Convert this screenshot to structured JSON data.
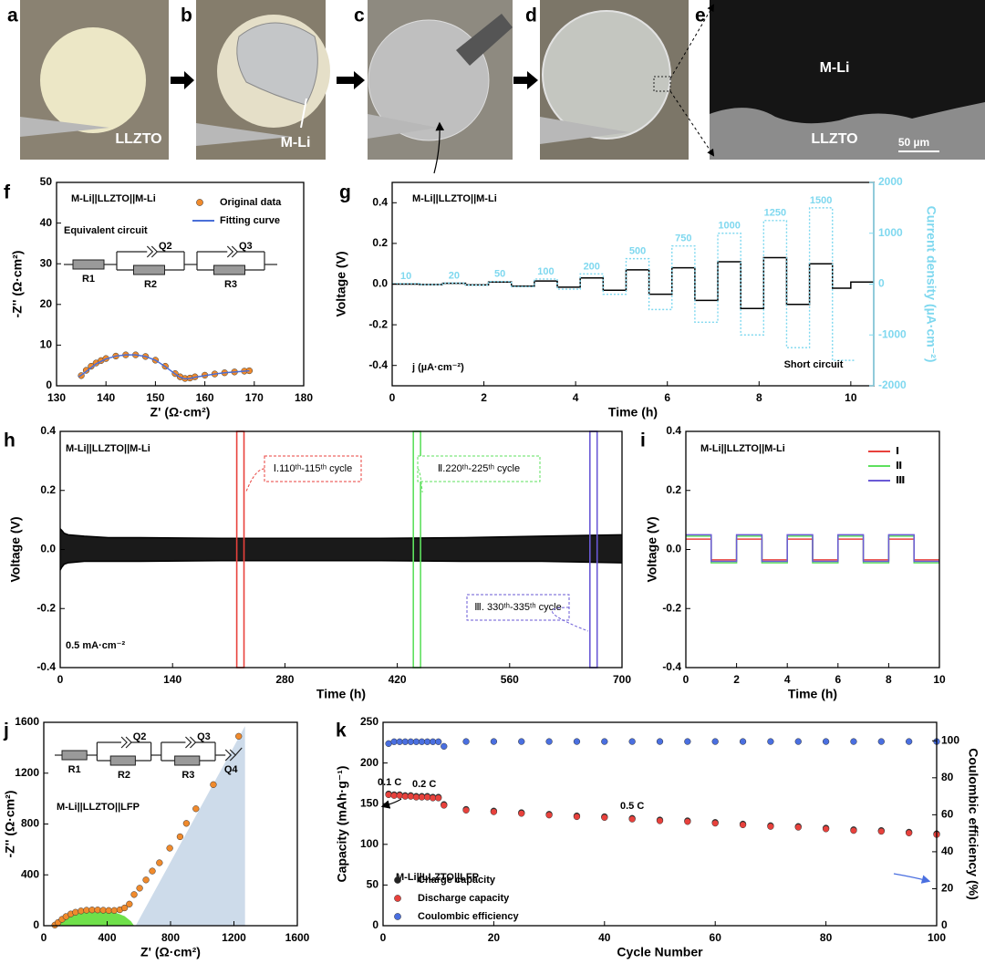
{
  "panel_labels": [
    "a",
    "b",
    "c",
    "d",
    "e",
    "f",
    "g",
    "h",
    "i",
    "j",
    "k"
  ],
  "photo_labels": {
    "a": [
      "LLZTO"
    ],
    "b": [
      "M-Li"
    ],
    "e": [
      "M-Li",
      "LLZTO",
      "50 µm"
    ]
  },
  "chart_data": [
    {
      "type": "scatter",
      "xlabel": "Z' (Ω·cm²)",
      "ylabel": "-Z'' (Ω·cm²)",
      "xlim": [
        130,
        180
      ],
      "xticks": [
        130,
        140,
        150,
        160,
        170,
        180
      ],
      "ylim": [
        0,
        50
      ],
      "yticks": [
        0,
        10,
        20,
        30,
        40,
        50
      ],
      "series": [
        {
          "name": "Original data",
          "color": "#f08a2c",
          "mode": "markers",
          "x": [
            135,
            136,
            137,
            138,
            139,
            140,
            142,
            144,
            146,
            148,
            150,
            152,
            154,
            155,
            156,
            157,
            158,
            160,
            162,
            164,
            166,
            168,
            169
          ],
          "values": [
            2.5,
            3.8,
            4.8,
            5.6,
            6.2,
            6.7,
            7.3,
            7.6,
            7.6,
            7.2,
            6.3,
            4.8,
            3.0,
            2.2,
            1.8,
            1.9,
            2.2,
            2.6,
            2.9,
            3.2,
            3.4,
            3.6,
            3.7
          ]
        },
        {
          "name": "Fitting curve",
          "color": "#4a6fd8",
          "mode": "line",
          "x": [
            134.5,
            136,
            138,
            140,
            142,
            144,
            146,
            148,
            150,
            152,
            154,
            155,
            156,
            157,
            158,
            160,
            162,
            164,
            166,
            168,
            169
          ],
          "values": [
            2.2,
            3.5,
            5.4,
            6.6,
            7.3,
            7.6,
            7.6,
            7.2,
            6.3,
            4.7,
            2.9,
            2.1,
            1.7,
            1.8,
            2.1,
            2.5,
            2.9,
            3.2,
            3.4,
            3.6,
            3.7
          ]
        }
      ],
      "legend": "upper right",
      "annotations": [
        "M-Li||LLZTO||M-Li",
        "Equivalent circuit"
      ],
      "circuit": [
        "R1",
        "Q2",
        "R2",
        "Q3",
        "R3"
      ]
    },
    {
      "type": "line",
      "step": true,
      "xlabel": "Time (h)",
      "ylabel": "Voltage (V)",
      "y2label": "Current density (µA·cm⁻²)",
      "y2color": "#7fd8ef",
      "xlim": [
        0,
        10.5
      ],
      "xticks": [
        0,
        2,
        4,
        6,
        8,
        10
      ],
      "ylim": [
        -0.5,
        0.5
      ],
      "yticks": [
        -0.4,
        -0.2,
        {
          "value": 0,
          "label": "0.0"
        },
        0.2,
        0.4
      ],
      "y2lim": [
        -2000,
        2000
      ],
      "y2ticks": [
        -2000,
        -1000,
        0,
        1000,
        2000
      ],
      "series": [
        {
          "color": "#000000",
          "x": [
            0,
            0.6,
            1.1,
            1.6,
            2.1,
            2.6,
            3.1,
            3.6,
            4.1,
            4.6,
            5.1,
            5.6,
            6.1,
            6.6,
            7.1,
            7.6,
            8.1,
            8.6,
            9.1,
            9.6,
            10.0,
            10.5
          ],
          "values": [
            0,
            -0.002,
            0.004,
            -0.004,
            0.01,
            -0.01,
            0.015,
            -0.015,
            0.03,
            -0.03,
            0.07,
            -0.05,
            0.08,
            -0.08,
            0.11,
            -0.12,
            0.13,
            -0.1,
            0.1,
            -0.02,
            0.01,
            0.01
          ]
        },
        {
          "color": "#7fd8ef",
          "axis": "y2",
          "dash": true,
          "data_labels": "positive",
          "x": [
            0,
            0.6,
            1.1,
            1.6,
            2.1,
            2.6,
            3.1,
            3.6,
            4.1,
            4.6,
            5.1,
            5.6,
            6.1,
            6.6,
            7.1,
            7.6,
            8.1,
            8.6,
            9.1,
            9.6,
            10.1
          ],
          "values": [
            10,
            -10,
            20,
            -20,
            50,
            -50,
            100,
            -100,
            200,
            -200,
            500,
            -500,
            750,
            -750,
            1000,
            -1000,
            1250,
            -1250,
            1500,
            -1500,
            -1500
          ]
        }
      ],
      "annotations": [
        "M-Li||LLZTO||M-Li",
        "j (µA·cm⁻²)",
        "Short circuit"
      ]
    },
    {
      "type": "area",
      "xlabel": "Time (h)",
      "ylabel": "Voltage (V)",
      "xlim": [
        0,
        700
      ],
      "xticks": [
        0,
        140,
        280,
        420,
        560,
        700
      ],
      "ylim": [
        -0.4,
        0.4
      ],
      "yticks": [
        -0.4,
        -0.2,
        {
          "value": 0,
          "label": "0.0"
        },
        0.2,
        0.4
      ],
      "x": [
        0,
        2,
        5,
        10,
        30,
        60,
        100,
        200,
        300,
        400,
        500,
        600,
        700
      ],
      "series": [
        {
          "color": "#000000",
          "values": [
            0.07,
            0.065,
            0.055,
            0.05,
            0.045,
            0.04,
            0.04,
            0.038,
            0.038,
            0.038,
            0.04,
            0.045,
            0.05
          ]
        },
        {
          "color": "#000000",
          "values": [
            -0.07,
            -0.06,
            -0.05,
            -0.045,
            -0.04,
            -0.04,
            -0.04,
            -0.038,
            -0.038,
            -0.038,
            -0.04,
            -0.04,
            -0.045
          ]
        }
      ],
      "highlights": [
        {
          "x": [
            220,
            229
          ],
          "color": "#e8413c",
          "label": "Ⅰ.110ᵗʰ-115ᵗʰ cycle"
        },
        {
          "x": [
            440,
            449
          ],
          "color": "#5ee05e",
          "label": "Ⅱ.220ᵗʰ-225ᵗʰ cycle"
        },
        {
          "x": [
            660,
            669
          ],
          "color": "#6a5ad6",
          "label": "Ⅲ. 330ᵗʰ-335ᵗʰ cycle"
        }
      ],
      "annotations": [
        "M-Li||LLZTO||M-Li",
        "0.5 mA·cm⁻²"
      ]
    },
    {
      "type": "line",
      "step": true,
      "xlabel": "Time (h)",
      "ylabel": "Voltage (V)",
      "xlim": [
        0,
        10
      ],
      "xticks": [
        0,
        2,
        4,
        6,
        8,
        10
      ],
      "ylim": [
        -0.4,
        0.4
      ],
      "yticks": [
        -0.4,
        -0.2,
        {
          "value": 0,
          "label": "0.0"
        },
        0.2,
        0.4
      ],
      "x": [
        0,
        1,
        2,
        3,
        4,
        5,
        6,
        7,
        8,
        9,
        10
      ],
      "series": [
        {
          "name": "Ⅰ",
          "color": "#e8413c",
          "values": [
            0.035,
            -0.035,
            0.035,
            -0.035,
            0.035,
            -0.035,
            0.035,
            -0.035,
            0.035,
            -0.035,
            -0.035
          ]
        },
        {
          "name": "Ⅱ",
          "color": "#5ee05e",
          "values": [
            0.045,
            -0.045,
            0.045,
            -0.045,
            0.045,
            -0.045,
            0.045,
            -0.045,
            0.045,
            -0.045,
            -0.045
          ]
        },
        {
          "name": "Ⅲ",
          "color": "#6a5ad6",
          "values": [
            0.05,
            -0.04,
            0.05,
            -0.04,
            0.05,
            -0.04,
            0.05,
            -0.04,
            0.05,
            -0.04,
            -0.04
          ]
        }
      ],
      "legend": "upper right",
      "annotations": [
        "M-Li||LLZTO||M-Li"
      ]
    },
    {
      "type": "scatter",
      "xlabel": "Z' (Ω·cm²)",
      "ylabel": "-Z'' (Ω·cm²)",
      "xlim": [
        0,
        1600
      ],
      "xticks": [
        0,
        400,
        800,
        1200,
        1600
      ],
      "ylim": [
        0,
        1600
      ],
      "yticks": [
        0,
        400,
        800,
        1200,
        1600
      ],
      "regions": [
        {
          "color": "#cddbea",
          "x": [
            580,
            1270,
            1270
          ],
          "y": [
            0,
            1570,
            0
          ]
        },
        {
          "color": "#6fe04a",
          "x": [
            60,
            100,
            160,
            230,
            300,
            380,
            450,
            510,
            550,
            570
          ],
          "y": [
            0,
            45,
            85,
            110,
            120,
            118,
            105,
            75,
            35,
            0
          ]
        }
      ],
      "series": [
        {
          "color": "#f08a2c",
          "mode": "markers",
          "x": [
            70,
            90,
            115,
            140,
            170,
            200,
            235,
            270,
            305,
            340,
            375,
            410,
            445,
            480,
            510,
            540,
            570,
            605,
            645,
            685,
            730,
            795,
            860,
            900,
            960,
            1070,
            1230
          ],
          "values": [
            5,
            25,
            50,
            72,
            92,
            106,
            116,
            122,
            124,
            124,
            122,
            120,
            120,
            125,
            140,
            170,
            245,
            295,
            360,
            430,
            495,
            610,
            700,
            805,
            920,
            1110,
            1490
          ]
        }
      ],
      "annotations": [
        "M-Li||LLZTO||LFP"
      ],
      "circuit": [
        "R1",
        "Q2",
        "R2",
        "Q3",
        "R3",
        "Q4"
      ]
    },
    {
      "type": "scatter",
      "xlabel": "Cycle Number",
      "ylabel": "Capacity (mAh·g⁻¹)",
      "y2label": "Coulombic efficiency (%)",
      "xlim": [
        0,
        100
      ],
      "xticks": [
        0,
        20,
        40,
        60,
        80,
        100
      ],
      "ylim": [
        0,
        250
      ],
      "yticks": [
        0,
        50,
        100,
        150,
        200,
        250
      ],
      "y2lim": [
        0,
        110
      ],
      "y2ticks": [
        0,
        20,
        40,
        60,
        80,
        100
      ],
      "x": [
        1,
        2,
        3,
        4,
        5,
        6,
        7,
        8,
        9,
        10,
        11,
        15,
        20,
        25,
        30,
        35,
        40,
        45,
        50,
        55,
        60,
        65,
        70,
        75,
        80,
        85,
        90,
        95,
        100
      ],
      "series": [
        {
          "name": "Charge capacity",
          "color": "#222222",
          "values": [
            162,
            161,
            161,
            160,
            160,
            159,
            159,
            159,
            158,
            158,
            149,
            143,
            141,
            139,
            137,
            135,
            134,
            132,
            130,
            129,
            127,
            125,
            123,
            122,
            120,
            118,
            117,
            115,
            113
          ]
        },
        {
          "name": "Discharge capacity",
          "color": "#e8413c",
          "values": [
            161,
            160,
            160,
            159,
            159,
            158,
            158,
            158,
            157,
            157,
            148,
            142,
            140,
            138,
            136,
            134,
            133,
            131,
            129,
            128,
            126,
            124,
            122,
            121,
            119,
            117,
            116,
            114,
            112
          ]
        },
        {
          "name": "Coulombic efficiency",
          "color": "#4a6fe0",
          "axis": "y2",
          "values": [
            98.5,
            99.5,
            99.5,
            99.5,
            99.5,
            99.5,
            99.5,
            99.5,
            99.5,
            99.5,
            97,
            99.6,
            99.6,
            99.6,
            99.6,
            99.6,
            99.6,
            99.6,
            99.6,
            99.6,
            99.6,
            99.6,
            99.6,
            99.6,
            99.6,
            99.6,
            99.6,
            99.6,
            99.6
          ]
        }
      ],
      "legend": "lower left",
      "annotations": [
        "0.1 C",
        "0.2 C",
        "0.5 C",
        "M-Li||LLZTO||LFP"
      ]
    }
  ]
}
